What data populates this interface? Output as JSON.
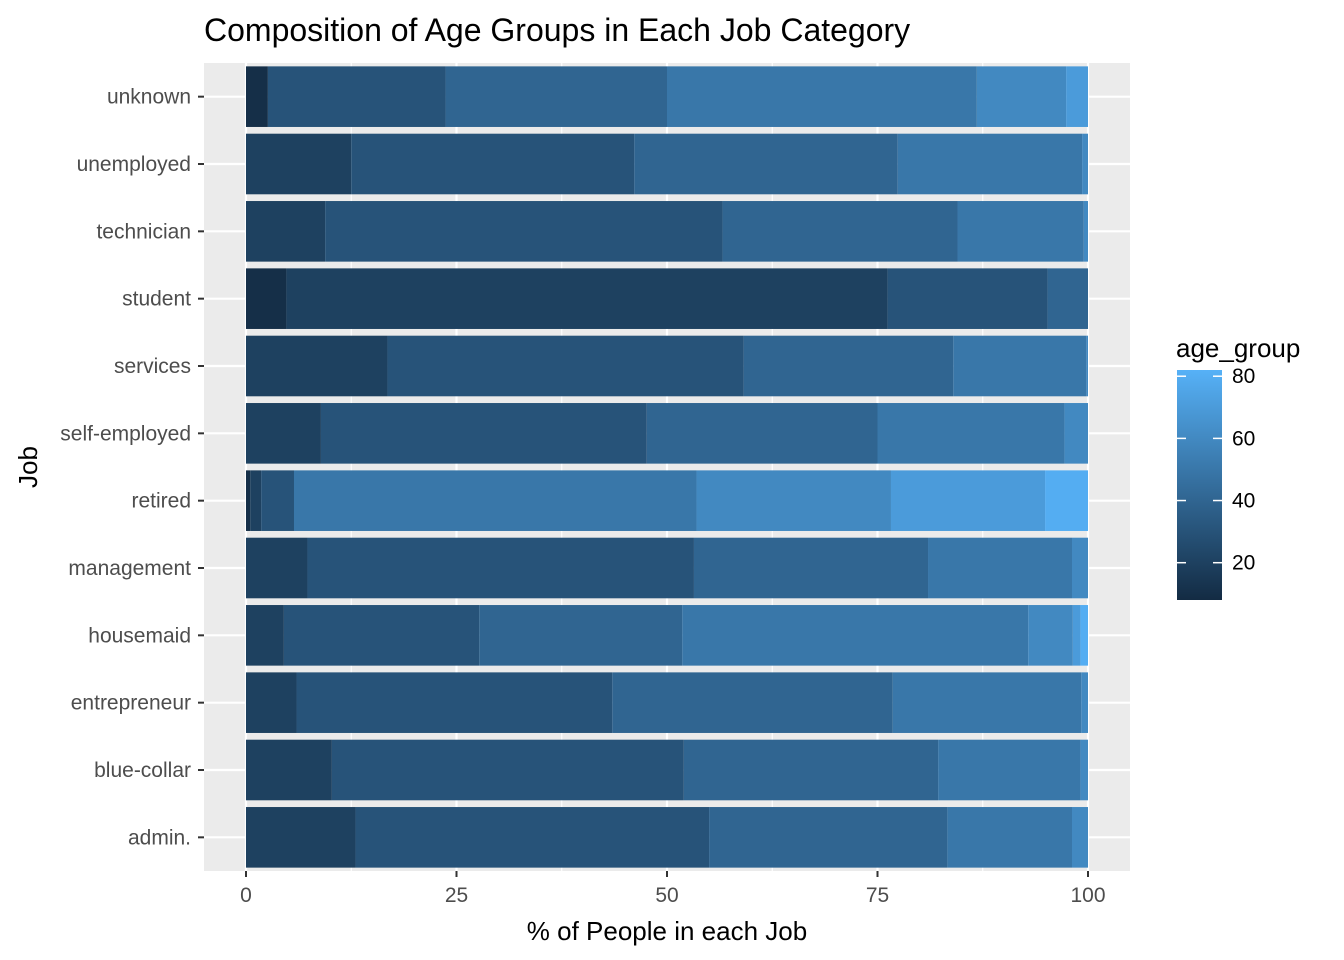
{
  "chart_data": {
    "type": "bar",
    "orientation": "horizontal",
    "stacked": true,
    "title": "Composition of Age Groups in Each Job Category",
    "xlabel": "% of People in each Job",
    "ylabel": "Job",
    "xlim": [
      0,
      100
    ],
    "x_ticks": [
      0,
      25,
      50,
      75,
      100
    ],
    "grid": true,
    "legend": {
      "title": "age_group",
      "type": "colorbar",
      "position": "right",
      "range": [
        8,
        82
      ],
      "ticks": [
        20,
        40,
        60,
        80
      ],
      "color_low": "#132B43",
      "color_high": "#56B1F7"
    },
    "categories": [
      "admin.",
      "blue-collar",
      "entrepreneur",
      "housemaid",
      "management",
      "retired",
      "self-employed",
      "services",
      "student",
      "technician",
      "unemployed",
      "unknown"
    ],
    "bars": [
      {
        "job": "admin.",
        "segments": [
          {
            "age": 20,
            "pct": 13.0
          },
          {
            "age": 30,
            "pct": 42.0
          },
          {
            "age": 40,
            "pct": 28.3
          },
          {
            "age": 50,
            "pct": 14.8
          },
          {
            "age": 60,
            "pct": 1.9
          }
        ]
      },
      {
        "job": "blue-collar",
        "segments": [
          {
            "age": 20,
            "pct": 10.2
          },
          {
            "age": 30,
            "pct": 41.8
          },
          {
            "age": 40,
            "pct": 30.2
          },
          {
            "age": 50,
            "pct": 16.9
          },
          {
            "age": 60,
            "pct": 0.9
          }
        ]
      },
      {
        "job": "entrepreneur",
        "segments": [
          {
            "age": 20,
            "pct": 6.0
          },
          {
            "age": 30,
            "pct": 37.5
          },
          {
            "age": 40,
            "pct": 33.3
          },
          {
            "age": 50,
            "pct": 22.4
          },
          {
            "age": 60,
            "pct": 0.8
          }
        ]
      },
      {
        "job": "housemaid",
        "segments": [
          {
            "age": 20,
            "pct": 4.5
          },
          {
            "age": 30,
            "pct": 23.2
          },
          {
            "age": 40,
            "pct": 24.1
          },
          {
            "age": 50,
            "pct": 41.1
          },
          {
            "age": 60,
            "pct": 5.3
          },
          {
            "age": 70,
            "pct": 0.9
          },
          {
            "age": 80,
            "pct": 0.9
          }
        ]
      },
      {
        "job": "management",
        "segments": [
          {
            "age": 20,
            "pct": 7.3
          },
          {
            "age": 30,
            "pct": 45.9
          },
          {
            "age": 40,
            "pct": 27.8
          },
          {
            "age": 50,
            "pct": 17.1
          },
          {
            "age": 60,
            "pct": 1.9
          }
        ]
      },
      {
        "job": "retired",
        "segments": [
          {
            "age": 10,
            "pct": 0.5
          },
          {
            "age": 20,
            "pct": 1.3
          },
          {
            "age": 30,
            "pct": 3.9
          },
          {
            "age": 50,
            "pct": 47.8
          },
          {
            "age": 60,
            "pct": 23.1
          },
          {
            "age": 70,
            "pct": 18.3
          },
          {
            "age": 80,
            "pct": 5.1
          }
        ]
      },
      {
        "job": "self-employed",
        "segments": [
          {
            "age": 20,
            "pct": 8.9
          },
          {
            "age": 30,
            "pct": 38.7
          },
          {
            "age": 40,
            "pct": 27.4
          },
          {
            "age": 50,
            "pct": 22.2
          },
          {
            "age": 60,
            "pct": 2.8
          }
        ]
      },
      {
        "job": "services",
        "segments": [
          {
            "age": 20,
            "pct": 16.8
          },
          {
            "age": 30,
            "pct": 42.3
          },
          {
            "age": 40,
            "pct": 24.9
          },
          {
            "age": 50,
            "pct": 15.8
          },
          {
            "age": 60,
            "pct": 0.2
          }
        ]
      },
      {
        "job": "student",
        "segments": [
          {
            "age": 10,
            "pct": 4.8
          },
          {
            "age": 20,
            "pct": 71.4
          },
          {
            "age": 30,
            "pct": 19.0
          },
          {
            "age": 40,
            "pct": 4.8
          }
        ]
      },
      {
        "job": "technician",
        "segments": [
          {
            "age": 20,
            "pct": 9.4
          },
          {
            "age": 30,
            "pct": 47.2
          },
          {
            "age": 40,
            "pct": 27.9
          },
          {
            "age": 50,
            "pct": 15.0
          },
          {
            "age": 60,
            "pct": 0.5
          }
        ]
      },
      {
        "job": "unemployed",
        "segments": [
          {
            "age": 20,
            "pct": 12.5
          },
          {
            "age": 30,
            "pct": 33.6
          },
          {
            "age": 40,
            "pct": 31.3
          },
          {
            "age": 50,
            "pct": 21.9
          },
          {
            "age": 60,
            "pct": 0.7
          }
        ]
      },
      {
        "job": "unknown",
        "segments": [
          {
            "age": 10,
            "pct": 2.6
          },
          {
            "age": 30,
            "pct": 21.1
          },
          {
            "age": 40,
            "pct": 26.3
          },
          {
            "age": 50,
            "pct": 36.8
          },
          {
            "age": 60,
            "pct": 10.6
          },
          {
            "age": 70,
            "pct": 2.6
          }
        ]
      }
    ]
  }
}
